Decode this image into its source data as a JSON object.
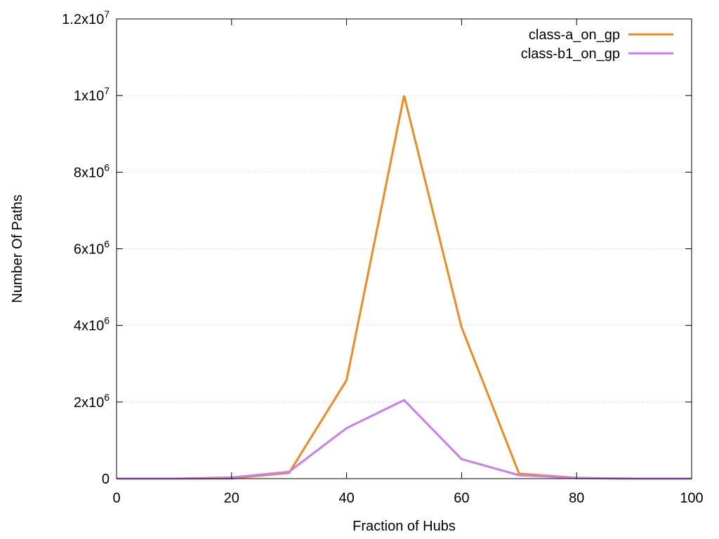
{
  "chart_data": {
    "type": "line",
    "title": "",
    "xlabel": "Fraction of Hubs",
    "ylabel": "Number Of Paths",
    "xlim": [
      0,
      100
    ],
    "ylim": [
      0,
      12000000
    ],
    "grid": true,
    "legend_position": "top-right",
    "x_ticks": [
      0,
      20,
      40,
      60,
      80,
      100
    ],
    "y_ticks": [
      {
        "value": 0,
        "base": "0",
        "exp": ""
      },
      {
        "value": 2000000,
        "base": "2x10",
        "exp": "6"
      },
      {
        "value": 4000000,
        "base": "4x10",
        "exp": "6"
      },
      {
        "value": 6000000,
        "base": "6x10",
        "exp": "6"
      },
      {
        "value": 8000000,
        "base": "8x10",
        "exp": "6"
      },
      {
        "value": 10000000,
        "base": "1x10",
        "exp": "7"
      },
      {
        "value": 12000000,
        "base": "1.2x10",
        "exp": "7"
      }
    ],
    "x": [
      0,
      10,
      20,
      30,
      40,
      50,
      60,
      70,
      80,
      90,
      100
    ],
    "series": [
      {
        "name": "class-a_on_gp",
        "color": "#f08a1e",
        "values": [
          0,
          0,
          5000,
          150000,
          2570000,
          10000000,
          3950000,
          130000,
          20000,
          0,
          0
        ]
      },
      {
        "name": "class-b1_on_gp",
        "color": "#c77ef0",
        "values": [
          0,
          0,
          30000,
          180000,
          1320000,
          2050000,
          510000,
          90000,
          15000,
          0,
          0
        ]
      }
    ]
  }
}
